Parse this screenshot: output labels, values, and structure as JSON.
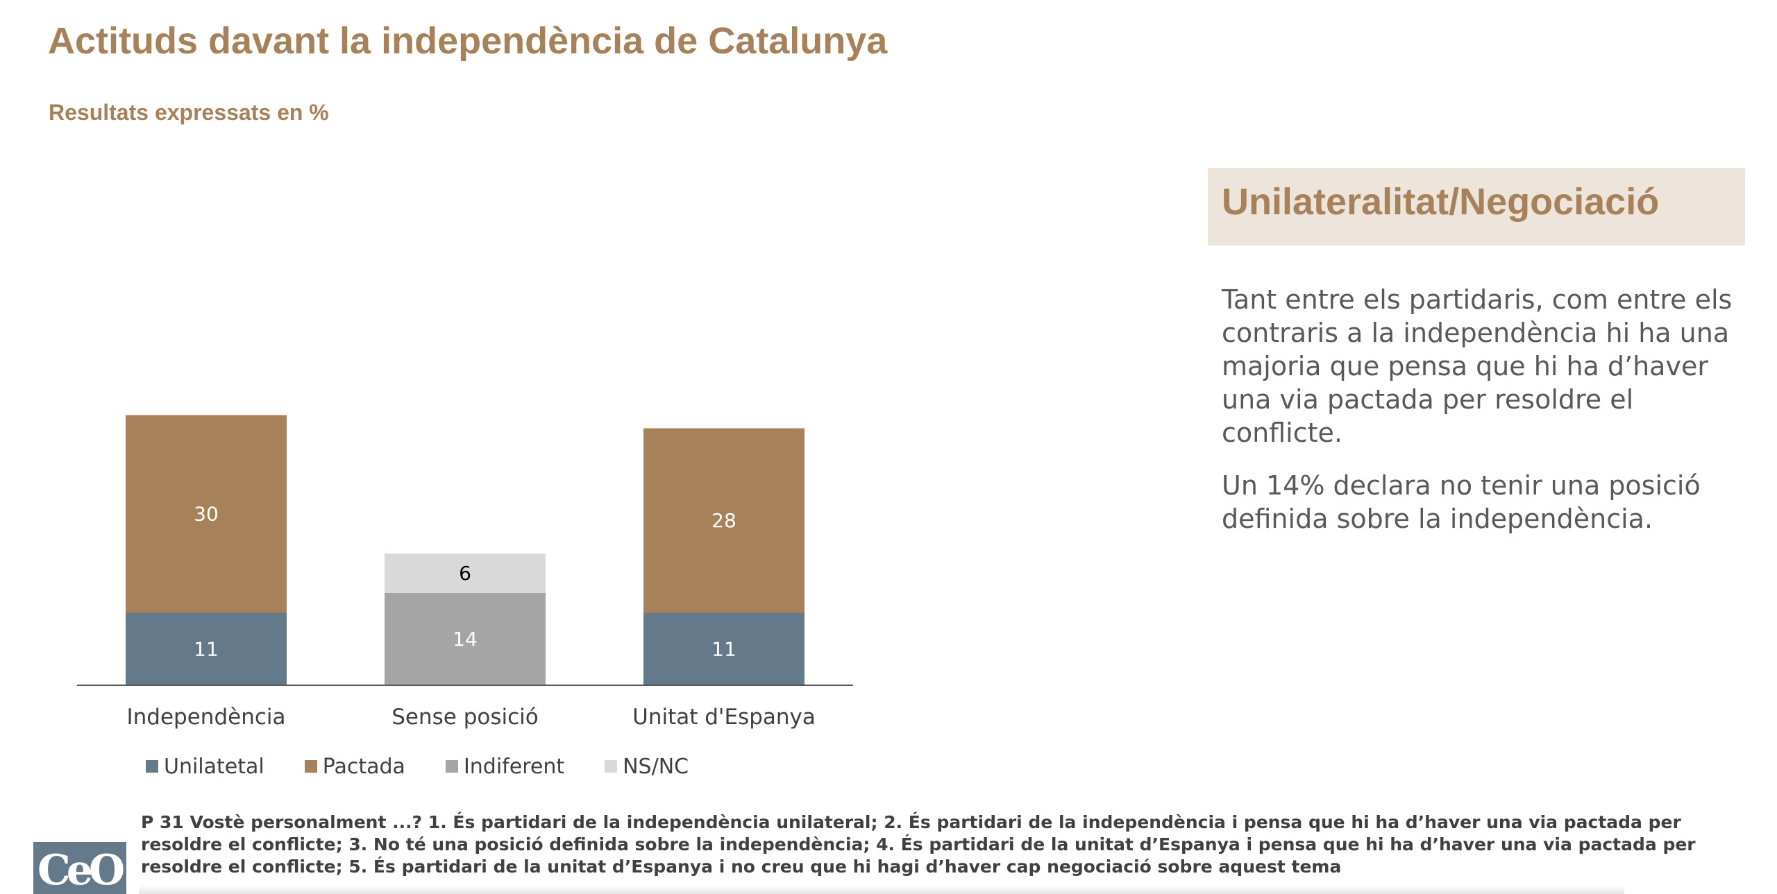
{
  "page": {
    "title": "Actituds davant la independència de Catalunya",
    "subtitle": "Resultats expressats en %"
  },
  "side_panel": {
    "heading": "Unilateralitat/Negociació",
    "paragraphs": [
      "Tant entre els partidaris, com entre els contraris a la independència hi ha una majoria que pensa que hi ha d’haver una via pactada per resoldre el conflicte.",
      "Un 14% declara no tenir una posició definida sobre la independència."
    ]
  },
  "footnote": "P 31 Vostè personalment ...? 1. És partidari de la independència unilateral; 2. És partidari de la independència i pensa que hi ha d’haver una via pactada per resoldre el conflicte; 3. No té una posició definida sobre la independència; 4. És partidari de la unitat d’Espanya i pensa que hi ha d’haver una via pactada per resoldre el conflicte; 5. És partidari de la unitat d’Espanya i no creu que hi hagi d’haver cap negociació sobre aquest tema",
  "logo": {
    "text": "CeO"
  },
  "chart_data": {
    "type": "bar",
    "stacked": true,
    "categories": [
      "Independència",
      "Sense posició",
      "Unitat d'Espanya"
    ],
    "series": [
      {
        "name": "Unilatetal",
        "color": "#64798a",
        "label_color": "#ffffff",
        "values": [
          11,
          null,
          11
        ]
      },
      {
        "name": "Pactada",
        "color": "#a6815a",
        "label_color": "#ffffff",
        "values": [
          30,
          null,
          28
        ]
      },
      {
        "name": "Indiferent",
        "color": "#a5a5a5",
        "label_color": "#ffffff",
        "values": [
          null,
          14,
          null
        ]
      },
      {
        "name": "NS/NC",
        "color": "#d9d9d9",
        "label_color": "#000000",
        "values": [
          null,
          6,
          null
        ]
      }
    ],
    "ylim": [
      0,
      41
    ],
    "grid": false,
    "legend_position": "bottom"
  }
}
